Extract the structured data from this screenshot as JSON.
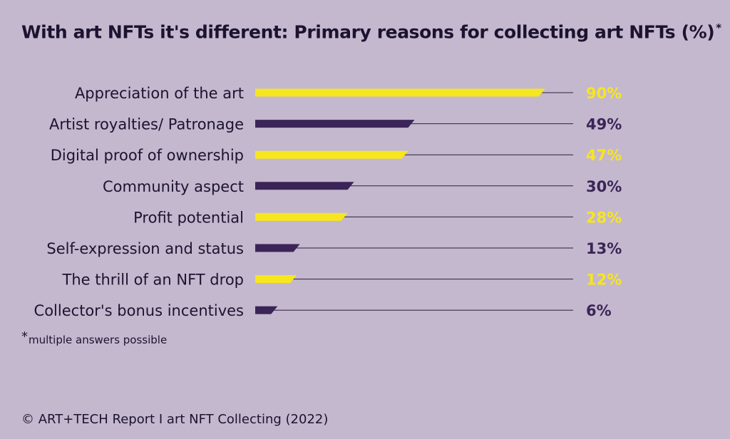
{
  "title": "With art NFTs it's different: Primary reasons for collecting art NFTs (%)",
  "title_mark": "*",
  "footnote": {
    "mark": "*",
    "text": "multiple answers possible"
  },
  "source": "© ART+TECH Report I art NFT Collecting (2022)",
  "colors": {
    "background": "#c4b8ce",
    "yellow": "#f6e61e",
    "purple": "#3b2457",
    "track": "#2b1f3d",
    "text": "#1b1330"
  },
  "chart_data": {
    "type": "bar",
    "orientation": "horizontal",
    "categories": [
      "Appreciation of the art",
      "Artist royalties/ Patronage",
      "Digital proof of ownership",
      "Community aspect",
      "Profit potential",
      "Self-expression and status",
      "The thrill of an NFT drop",
      "Collector's bonus incentives"
    ],
    "values": [
      90,
      49,
      47,
      30,
      28,
      13,
      12,
      6
    ],
    "value_labels": [
      "90%",
      "49%",
      "47%",
      "30%",
      "28%",
      "13%",
      "12%",
      "6%"
    ],
    "bar_colors": [
      "yellow",
      "purple",
      "yellow",
      "purple",
      "yellow",
      "purple",
      "yellow",
      "purple"
    ],
    "xlim": [
      0,
      100
    ],
    "grid": false,
    "legend": "none"
  }
}
